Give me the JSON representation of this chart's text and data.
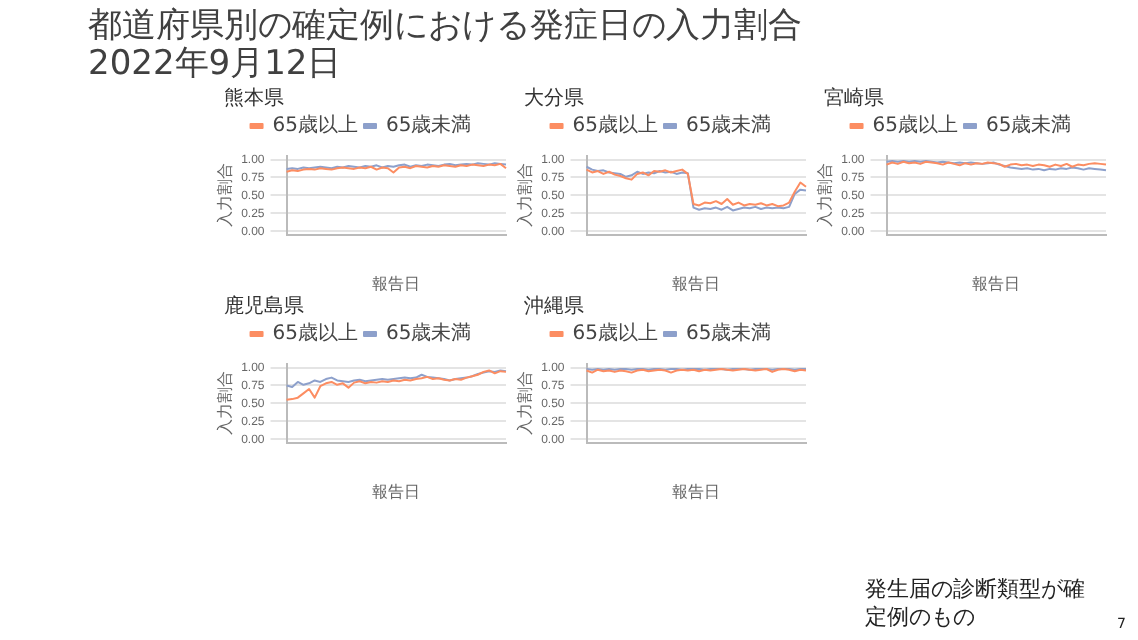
{
  "chart_data": [
    {
      "type": "other",
      "title": "都道府県別の確定例における発症日の入力割合 2022年9月12日",
      "annotations": [
        "発生届の診断類型が確定例のもの",
        "7"
      ]
    },
    {
      "type": "line",
      "title": "熊本県",
      "xlabel": "報告日",
      "ylabel": "入力割合",
      "categories": [
        null,
        null,
        null,
        null,
        null,
        null,
        null,
        null,
        null,
        null,
        null,
        null,
        null,
        null,
        null,
        null,
        null,
        null,
        null,
        null,
        null,
        null,
        null,
        null,
        null,
        null,
        null,
        null,
        null,
        null,
        null,
        null,
        null,
        null,
        null,
        null,
        null,
        null,
        null,
        null
      ],
      "ylim": [
        -0.05,
        1.05
      ],
      "yticks": [
        {
          "value": 0,
          "label": "0.00"
        },
        {
          "value": 0.25,
          "label": "0.25"
        },
        {
          "value": 0.5,
          "label": "0.50"
        },
        {
          "value": 0.75,
          "label": "0.75"
        },
        {
          "value": 1,
          "label": "1.00"
        }
      ],
      "grid": "y",
      "legend": "top",
      "marker": "none",
      "series": [
        {
          "name": "65歳以上",
          "color": "#fc8d62",
          "values": [
            0.83,
            0.85,
            0.84,
            0.86,
            0.87,
            0.86,
            0.88,
            0.87,
            0.86,
            0.88,
            0.89,
            0.88,
            0.87,
            0.89,
            0.88,
            0.9,
            0.86,
            0.89,
            0.88,
            0.82,
            0.89,
            0.9,
            0.88,
            0.91,
            0.9,
            0.89,
            0.91,
            0.9,
            0.92,
            0.91,
            0.9,
            0.92,
            0.91,
            0.93,
            0.92,
            0.91,
            0.93,
            0.92,
            0.94,
            0.88
          ]
        },
        {
          "name": "65歳未満",
          "color": "#8da0cb",
          "values": [
            0.87,
            0.88,
            0.87,
            0.89,
            0.88,
            0.89,
            0.9,
            0.89,
            0.88,
            0.9,
            0.89,
            0.91,
            0.9,
            0.89,
            0.91,
            0.9,
            0.92,
            0.89,
            0.91,
            0.9,
            0.92,
            0.93,
            0.9,
            0.92,
            0.91,
            0.93,
            0.92,
            0.91,
            0.93,
            0.94,
            0.92,
            0.93,
            0.94,
            0.93,
            0.95,
            0.94,
            0.93,
            0.95,
            0.94,
            0.93
          ]
        }
      ]
    },
    {
      "type": "line",
      "title": "大分県",
      "xlabel": "報告日",
      "ylabel": "入力割合",
      "categories": [
        null,
        null,
        null,
        null,
        null,
        null,
        null,
        null,
        null,
        null,
        null,
        null,
        null,
        null,
        null,
        null,
        null,
        null,
        null,
        null,
        null,
        null,
        null,
        null,
        null,
        null,
        null,
        null,
        null,
        null,
        null,
        null,
        null,
        null,
        null,
        null,
        null,
        null,
        null,
        null
      ],
      "ylim": [
        -0.05,
        1.05
      ],
      "yticks": [
        {
          "value": 0,
          "label": "0.00"
        },
        {
          "value": 0.25,
          "label": "0.25"
        },
        {
          "value": 0.5,
          "label": "0.50"
        },
        {
          "value": 0.75,
          "label": "0.75"
        },
        {
          "value": 1,
          "label": "1.00"
        }
      ],
      "grid": "y",
      "legend": "top",
      "marker": "none",
      "series": [
        {
          "name": "65歳以上",
          "color": "#fc8d62",
          "values": [
            0.86,
            0.82,
            0.84,
            0.8,
            0.83,
            0.79,
            0.77,
            0.74,
            0.72,
            0.8,
            0.82,
            0.78,
            0.84,
            0.83,
            0.85,
            0.82,
            0.84,
            0.86,
            0.8,
            0.38,
            0.36,
            0.4,
            0.39,
            0.42,
            0.38,
            0.45,
            0.37,
            0.4,
            0.36,
            0.38,
            0.37,
            0.39,
            0.36,
            0.38,
            0.35,
            0.36,
            0.4,
            0.55,
            0.68,
            0.62
          ]
        },
        {
          "name": "65歳未満",
          "color": "#8da0cb",
          "values": [
            0.9,
            0.86,
            0.84,
            0.85,
            0.82,
            0.81,
            0.8,
            0.76,
            0.78,
            0.83,
            0.8,
            0.82,
            0.81,
            0.84,
            0.82,
            0.83,
            0.8,
            0.82,
            0.81,
            0.33,
            0.3,
            0.32,
            0.31,
            0.33,
            0.3,
            0.34,
            0.29,
            0.31,
            0.33,
            0.32,
            0.34,
            0.31,
            0.33,
            0.32,
            0.33,
            0.32,
            0.34,
            0.52,
            0.58,
            0.57
          ]
        }
      ]
    },
    {
      "type": "line",
      "title": "宮崎県",
      "xlabel": "報告日",
      "ylabel": "入力割合",
      "categories": [
        null,
        null,
        null,
        null,
        null,
        null,
        null,
        null,
        null,
        null,
        null,
        null,
        null,
        null,
        null,
        null,
        null,
        null,
        null,
        null,
        null,
        null,
        null,
        null,
        null,
        null,
        null,
        null,
        null,
        null,
        null,
        null,
        null,
        null,
        null,
        null,
        null,
        null,
        null,
        null
      ],
      "ylim": [
        -0.05,
        1.05
      ],
      "yticks": [
        {
          "value": 0,
          "label": "0.00"
        },
        {
          "value": 0.25,
          "label": "0.25"
        },
        {
          "value": 0.5,
          "label": "0.50"
        },
        {
          "value": 0.75,
          "label": "0.75"
        },
        {
          "value": 1,
          "label": "1.00"
        }
      ],
      "grid": "y",
      "legend": "top",
      "marker": "none",
      "series": [
        {
          "name": "65歳以上",
          "color": "#fc8d62",
          "values": [
            0.93,
            0.96,
            0.94,
            0.97,
            0.95,
            0.96,
            0.94,
            0.97,
            0.96,
            0.95,
            0.93,
            0.96,
            0.94,
            0.92,
            0.95,
            0.93,
            0.95,
            0.94,
            0.96,
            0.95,
            0.94,
            0.9,
            0.93,
            0.94,
            0.92,
            0.93,
            0.91,
            0.93,
            0.92,
            0.9,
            0.93,
            0.91,
            0.94,
            0.9,
            0.93,
            0.92,
            0.94,
            0.95,
            0.94,
            0.93
          ]
        },
        {
          "name": "65歳未満",
          "color": "#8da0cb",
          "values": [
            0.97,
            0.98,
            0.97,
            0.98,
            0.97,
            0.98,
            0.97,
            0.98,
            0.97,
            0.96,
            0.97,
            0.96,
            0.95,
            0.96,
            0.95,
            0.96,
            0.95,
            0.94,
            0.95,
            0.96,
            0.93,
            0.91,
            0.89,
            0.88,
            0.87,
            0.88,
            0.86,
            0.87,
            0.85,
            0.87,
            0.86,
            0.88,
            0.87,
            0.89,
            0.88,
            0.86,
            0.88,
            0.87,
            0.86,
            0.85
          ]
        }
      ]
    },
    {
      "type": "line",
      "title": "鹿児島県",
      "xlabel": "報告日",
      "ylabel": "入力割合",
      "categories": [
        null,
        null,
        null,
        null,
        null,
        null,
        null,
        null,
        null,
        null,
        null,
        null,
        null,
        null,
        null,
        null,
        null,
        null,
        null,
        null,
        null,
        null,
        null,
        null,
        null,
        null,
        null,
        null,
        null,
        null,
        null,
        null,
        null,
        null,
        null,
        null,
        null,
        null,
        null,
        null
      ],
      "ylim": [
        -0.05,
        1.05
      ],
      "yticks": [
        {
          "value": 0,
          "label": "0.00"
        },
        {
          "value": 0.25,
          "label": "0.25"
        },
        {
          "value": 0.5,
          "label": "0.50"
        },
        {
          "value": 0.75,
          "label": "0.75"
        },
        {
          "value": 1,
          "label": "1.00"
        }
      ],
      "grid": "y",
      "legend": "top",
      "marker": "none",
      "series": [
        {
          "name": "65歳以上",
          "color": "#fc8d62",
          "values": [
            0.55,
            0.56,
            0.58,
            0.64,
            0.7,
            0.58,
            0.74,
            0.78,
            0.8,
            0.76,
            0.78,
            0.72,
            0.79,
            0.81,
            0.78,
            0.8,
            0.79,
            0.81,
            0.8,
            0.82,
            0.81,
            0.83,
            0.82,
            0.84,
            0.85,
            0.87,
            0.84,
            0.85,
            0.83,
            0.82,
            0.84,
            0.83,
            0.86,
            0.88,
            0.9,
            0.94,
            0.96,
            0.92,
            0.95,
            0.94
          ]
        },
        {
          "name": "65歳未満",
          "color": "#8da0cb",
          "values": [
            0.75,
            0.73,
            0.8,
            0.76,
            0.78,
            0.82,
            0.8,
            0.84,
            0.86,
            0.82,
            0.81,
            0.8,
            0.82,
            0.83,
            0.81,
            0.82,
            0.83,
            0.84,
            0.83,
            0.84,
            0.85,
            0.86,
            0.85,
            0.86,
            0.9,
            0.87,
            0.86,
            0.85,
            0.84,
            0.82,
            0.84,
            0.85,
            0.86,
            0.88,
            0.91,
            0.93,
            0.95,
            0.94,
            0.96,
            0.95
          ]
        }
      ]
    },
    {
      "type": "line",
      "title": "沖縄県",
      "xlabel": "報告日",
      "ylabel": "入力割合",
      "categories": [
        null,
        null,
        null,
        null,
        null,
        null,
        null,
        null,
        null,
        null,
        null,
        null,
        null,
        null,
        null,
        null,
        null,
        null,
        null,
        null,
        null,
        null,
        null,
        null,
        null,
        null,
        null,
        null,
        null,
        null,
        null,
        null,
        null,
        null,
        null,
        null,
        null,
        null,
        null,
        null
      ],
      "ylim": [
        -0.05,
        1.05
      ],
      "yticks": [
        {
          "value": 0,
          "label": "0.00"
        },
        {
          "value": 0.25,
          "label": "0.25"
        },
        {
          "value": 0.5,
          "label": "0.50"
        },
        {
          "value": 0.75,
          "label": "0.75"
        },
        {
          "value": 1,
          "label": "1.00"
        }
      ],
      "grid": "y",
      "legend": "top",
      "marker": "none",
      "series": [
        {
          "name": "65歳以上",
          "color": "#fc8d62",
          "values": [
            0.96,
            0.93,
            0.97,
            0.95,
            0.96,
            0.94,
            0.96,
            0.95,
            0.93,
            0.96,
            0.97,
            0.95,
            0.96,
            0.97,
            0.96,
            0.93,
            0.96,
            0.97,
            0.96,
            0.97,
            0.95,
            0.97,
            0.96,
            0.97,
            0.98,
            0.97,
            0.96,
            0.97,
            0.98,
            0.97,
            0.96,
            0.97,
            0.98,
            0.94,
            0.97,
            0.98,
            0.97,
            0.95,
            0.97,
            0.96
          ]
        },
        {
          "name": "65歳未満",
          "color": "#8da0cb",
          "values": [
            0.98,
            0.97,
            0.98,
            0.97,
            0.98,
            0.97,
            0.98,
            0.98,
            0.97,
            0.98,
            0.98,
            0.97,
            0.98,
            0.98,
            0.97,
            0.98,
            0.98,
            0.97,
            0.98,
            0.98,
            0.98,
            0.97,
            0.98,
            0.98,
            0.98,
            0.97,
            0.98,
            0.98,
            0.98,
            0.97,
            0.98,
            0.98,
            0.98,
            0.97,
            0.98,
            0.98,
            0.98,
            0.97,
            0.98,
            0.98
          ]
        }
      ]
    }
  ]
}
